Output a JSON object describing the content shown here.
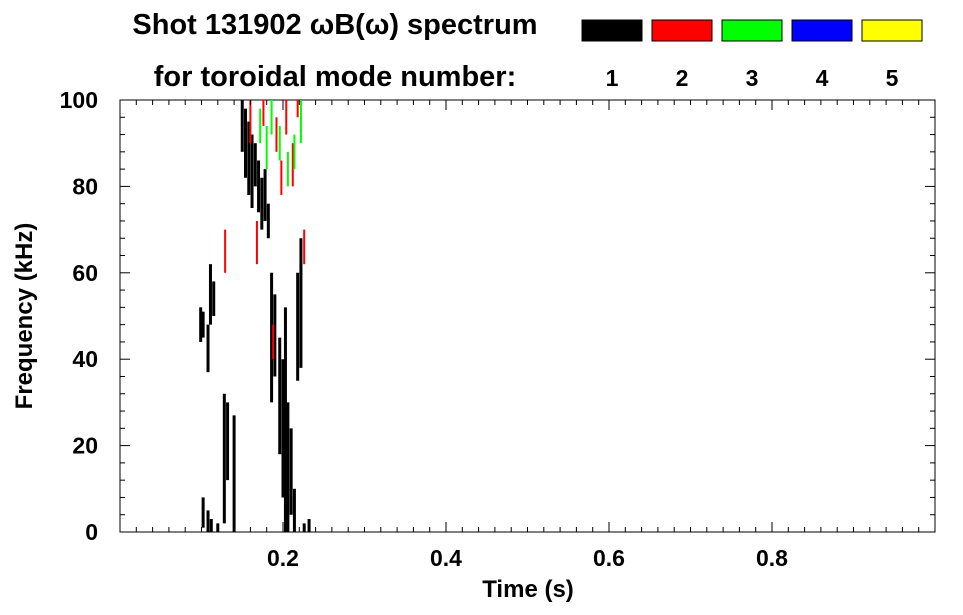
{
  "header": {
    "title_line1": "Shot 131902 ωB(ω) spectrum",
    "title_line2": "for toroidal mode number:"
  },
  "mode_legend": [
    {
      "label": "1",
      "color": "#000000"
    },
    {
      "label": "2",
      "color": "#ff0000"
    },
    {
      "label": "3",
      "color": "#00ff00"
    },
    {
      "label": "4",
      "color": "#0000ff"
    },
    {
      "label": "5",
      "color": "#ffff00"
    }
  ],
  "chart_data": {
    "type": "heatmap",
    "title": "Shot 131902 ωB(ω) spectrum",
    "xlabel": "Time (s)",
    "ylabel": "Frequency (kHz)",
    "xlim": [
      0.0,
      1.0
    ],
    "ylim": [
      0,
      100
    ],
    "x_ticks": [
      0.2,
      0.4,
      0.6,
      0.8
    ],
    "x_tick_labels": [
      "0.2",
      "0.4",
      "0.6",
      "0.8"
    ],
    "y_ticks": [
      0,
      20,
      40,
      60,
      80,
      100
    ],
    "y_tick_labels": [
      "0",
      "20",
      "40",
      "60",
      "80",
      "100"
    ],
    "legend_position": "top-right",
    "grid": false,
    "series": [
      {
        "name": "1",
        "color": "#000000",
        "segments": [
          {
            "t": 0.099,
            "f0": 44,
            "f1": 52
          },
          {
            "t": 0.102,
            "f0": 45,
            "f1": 51
          },
          {
            "t": 0.108,
            "f0": 37,
            "f1": 48
          },
          {
            "t": 0.111,
            "f0": 48,
            "f1": 62
          },
          {
            "t": 0.115,
            "f0": 50,
            "f1": 58
          },
          {
            "t": 0.102,
            "f0": 1,
            "f1": 8
          },
          {
            "t": 0.108,
            "f0": 0,
            "f1": 5
          },
          {
            "t": 0.112,
            "f0": 0,
            "f1": 3
          },
          {
            "t": 0.12,
            "f0": 0,
            "f1": 2
          },
          {
            "t": 0.128,
            "f0": 2,
            "f1": 32
          },
          {
            "t": 0.132,
            "f0": 12,
            "f1": 30
          },
          {
            "t": 0.14,
            "f0": 0,
            "f1": 27
          },
          {
            "t": 0.15,
            "f0": 88,
            "f1": 100
          },
          {
            "t": 0.154,
            "f0": 82,
            "f1": 98
          },
          {
            "t": 0.158,
            "f0": 78,
            "f1": 95
          },
          {
            "t": 0.162,
            "f0": 75,
            "f1": 92
          },
          {
            "t": 0.166,
            "f0": 80,
            "f1": 90
          },
          {
            "t": 0.17,
            "f0": 74,
            "f1": 86
          },
          {
            "t": 0.174,
            "f0": 70,
            "f1": 82
          },
          {
            "t": 0.178,
            "f0": 72,
            "f1": 84
          },
          {
            "t": 0.182,
            "f0": 68,
            "f1": 76
          },
          {
            "t": 0.186,
            "f0": 30,
            "f1": 60
          },
          {
            "t": 0.19,
            "f0": 36,
            "f1": 55
          },
          {
            "t": 0.196,
            "f0": 18,
            "f1": 45
          },
          {
            "t": 0.2,
            "f0": 8,
            "f1": 40
          },
          {
            "t": 0.203,
            "f0": 0,
            "f1": 52
          },
          {
            "t": 0.206,
            "f0": 0,
            "f1": 30
          },
          {
            "t": 0.21,
            "f0": 4,
            "f1": 24
          },
          {
            "t": 0.214,
            "f0": 0,
            "f1": 10
          },
          {
            "t": 0.218,
            "f0": 35,
            "f1": 60
          },
          {
            "t": 0.222,
            "f0": 38,
            "f1": 68
          },
          {
            "t": 0.226,
            "f0": 0,
            "f1": 2
          },
          {
            "t": 0.232,
            "f0": 0,
            "f1": 3
          }
        ]
      },
      {
        "name": "2",
        "color": "#ff0000",
        "segments": [
          {
            "t": 0.129,
            "f0": 60,
            "f1": 70
          },
          {
            "t": 0.16,
            "f0": 90,
            "f1": 100
          },
          {
            "t": 0.168,
            "f0": 62,
            "f1": 72
          },
          {
            "t": 0.176,
            "f0": 94,
            "f1": 100
          },
          {
            "t": 0.188,
            "f0": 40,
            "f1": 48
          },
          {
            "t": 0.192,
            "f0": 88,
            "f1": 96
          },
          {
            "t": 0.198,
            "f0": 78,
            "f1": 86
          },
          {
            "t": 0.204,
            "f0": 92,
            "f1": 100
          },
          {
            "t": 0.212,
            "f0": 80,
            "f1": 90
          },
          {
            "t": 0.218,
            "f0": 96,
            "f1": 100
          },
          {
            "t": 0.226,
            "f0": 62,
            "f1": 70
          }
        ]
      },
      {
        "name": "3",
        "color": "#00ff00",
        "segments": [
          {
            "t": 0.172,
            "f0": 90,
            "f1": 98
          },
          {
            "t": 0.18,
            "f0": 84,
            "f1": 94
          },
          {
            "t": 0.186,
            "f0": 92,
            "f1": 100
          },
          {
            "t": 0.196,
            "f0": 86,
            "f1": 94
          },
          {
            "t": 0.206,
            "f0": 80,
            "f1": 88
          },
          {
            "t": 0.214,
            "f0": 84,
            "f1": 92
          },
          {
            "t": 0.222,
            "f0": 90,
            "f1": 100
          }
        ]
      }
    ]
  }
}
